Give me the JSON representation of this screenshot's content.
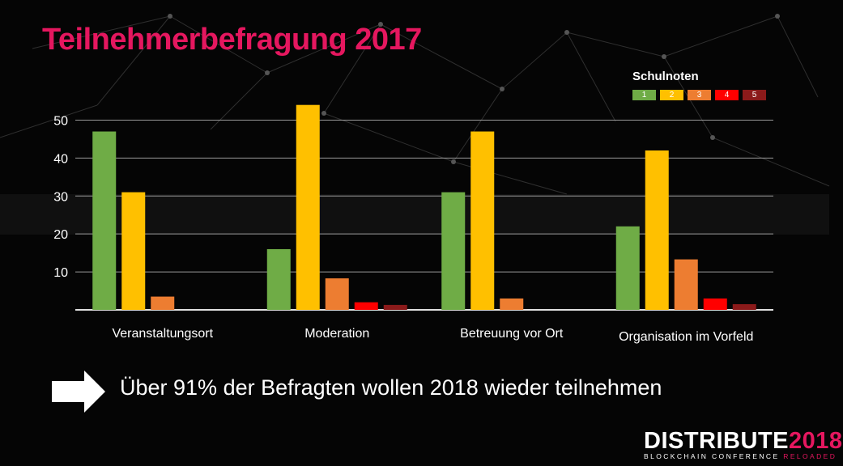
{
  "slide": {
    "title": "Teilnehmerbefragung 2017",
    "message": "Über 91% der Befragten wollen 2018 wieder teilnehmen"
  },
  "legend": {
    "title": "Schulnoten",
    "items": [
      {
        "label": "1",
        "color": "#6fac46"
      },
      {
        "label": "2",
        "color": "#ffc000"
      },
      {
        "label": "3",
        "color": "#ed7d31"
      },
      {
        "label": "4",
        "color": "#ff0000"
      },
      {
        "label": "5",
        "color": "#8b1a1a"
      }
    ]
  },
  "logo": {
    "brand": "DISTRIBUTE",
    "year": "2018",
    "subtitle": "BLOCKCHAIN CONFERENCE",
    "subtitle_accent": "RELOADED"
  },
  "chart_data": {
    "type": "bar",
    "categories": [
      "Veranstaltungsort",
      "Moderation",
      "Betreuung vor Ort",
      "Organisation im Vorfeld"
    ],
    "series": [
      {
        "name": "1",
        "values": [
          47,
          16,
          31,
          22
        ]
      },
      {
        "name": "2",
        "values": [
          31,
          54,
          47,
          42
        ]
      },
      {
        "name": "3",
        "values": [
          3.5,
          8.3,
          3,
          13.3
        ]
      },
      {
        "name": "4",
        "values": [
          0,
          2,
          0,
          3
        ]
      },
      {
        "name": "5",
        "values": [
          0,
          1.3,
          0,
          1.5
        ]
      }
    ],
    "yticks": [
      10,
      20,
      30,
      40,
      50
    ],
    "ylim": [
      0,
      55
    ],
    "grid": true,
    "legend_position": "top-right"
  }
}
